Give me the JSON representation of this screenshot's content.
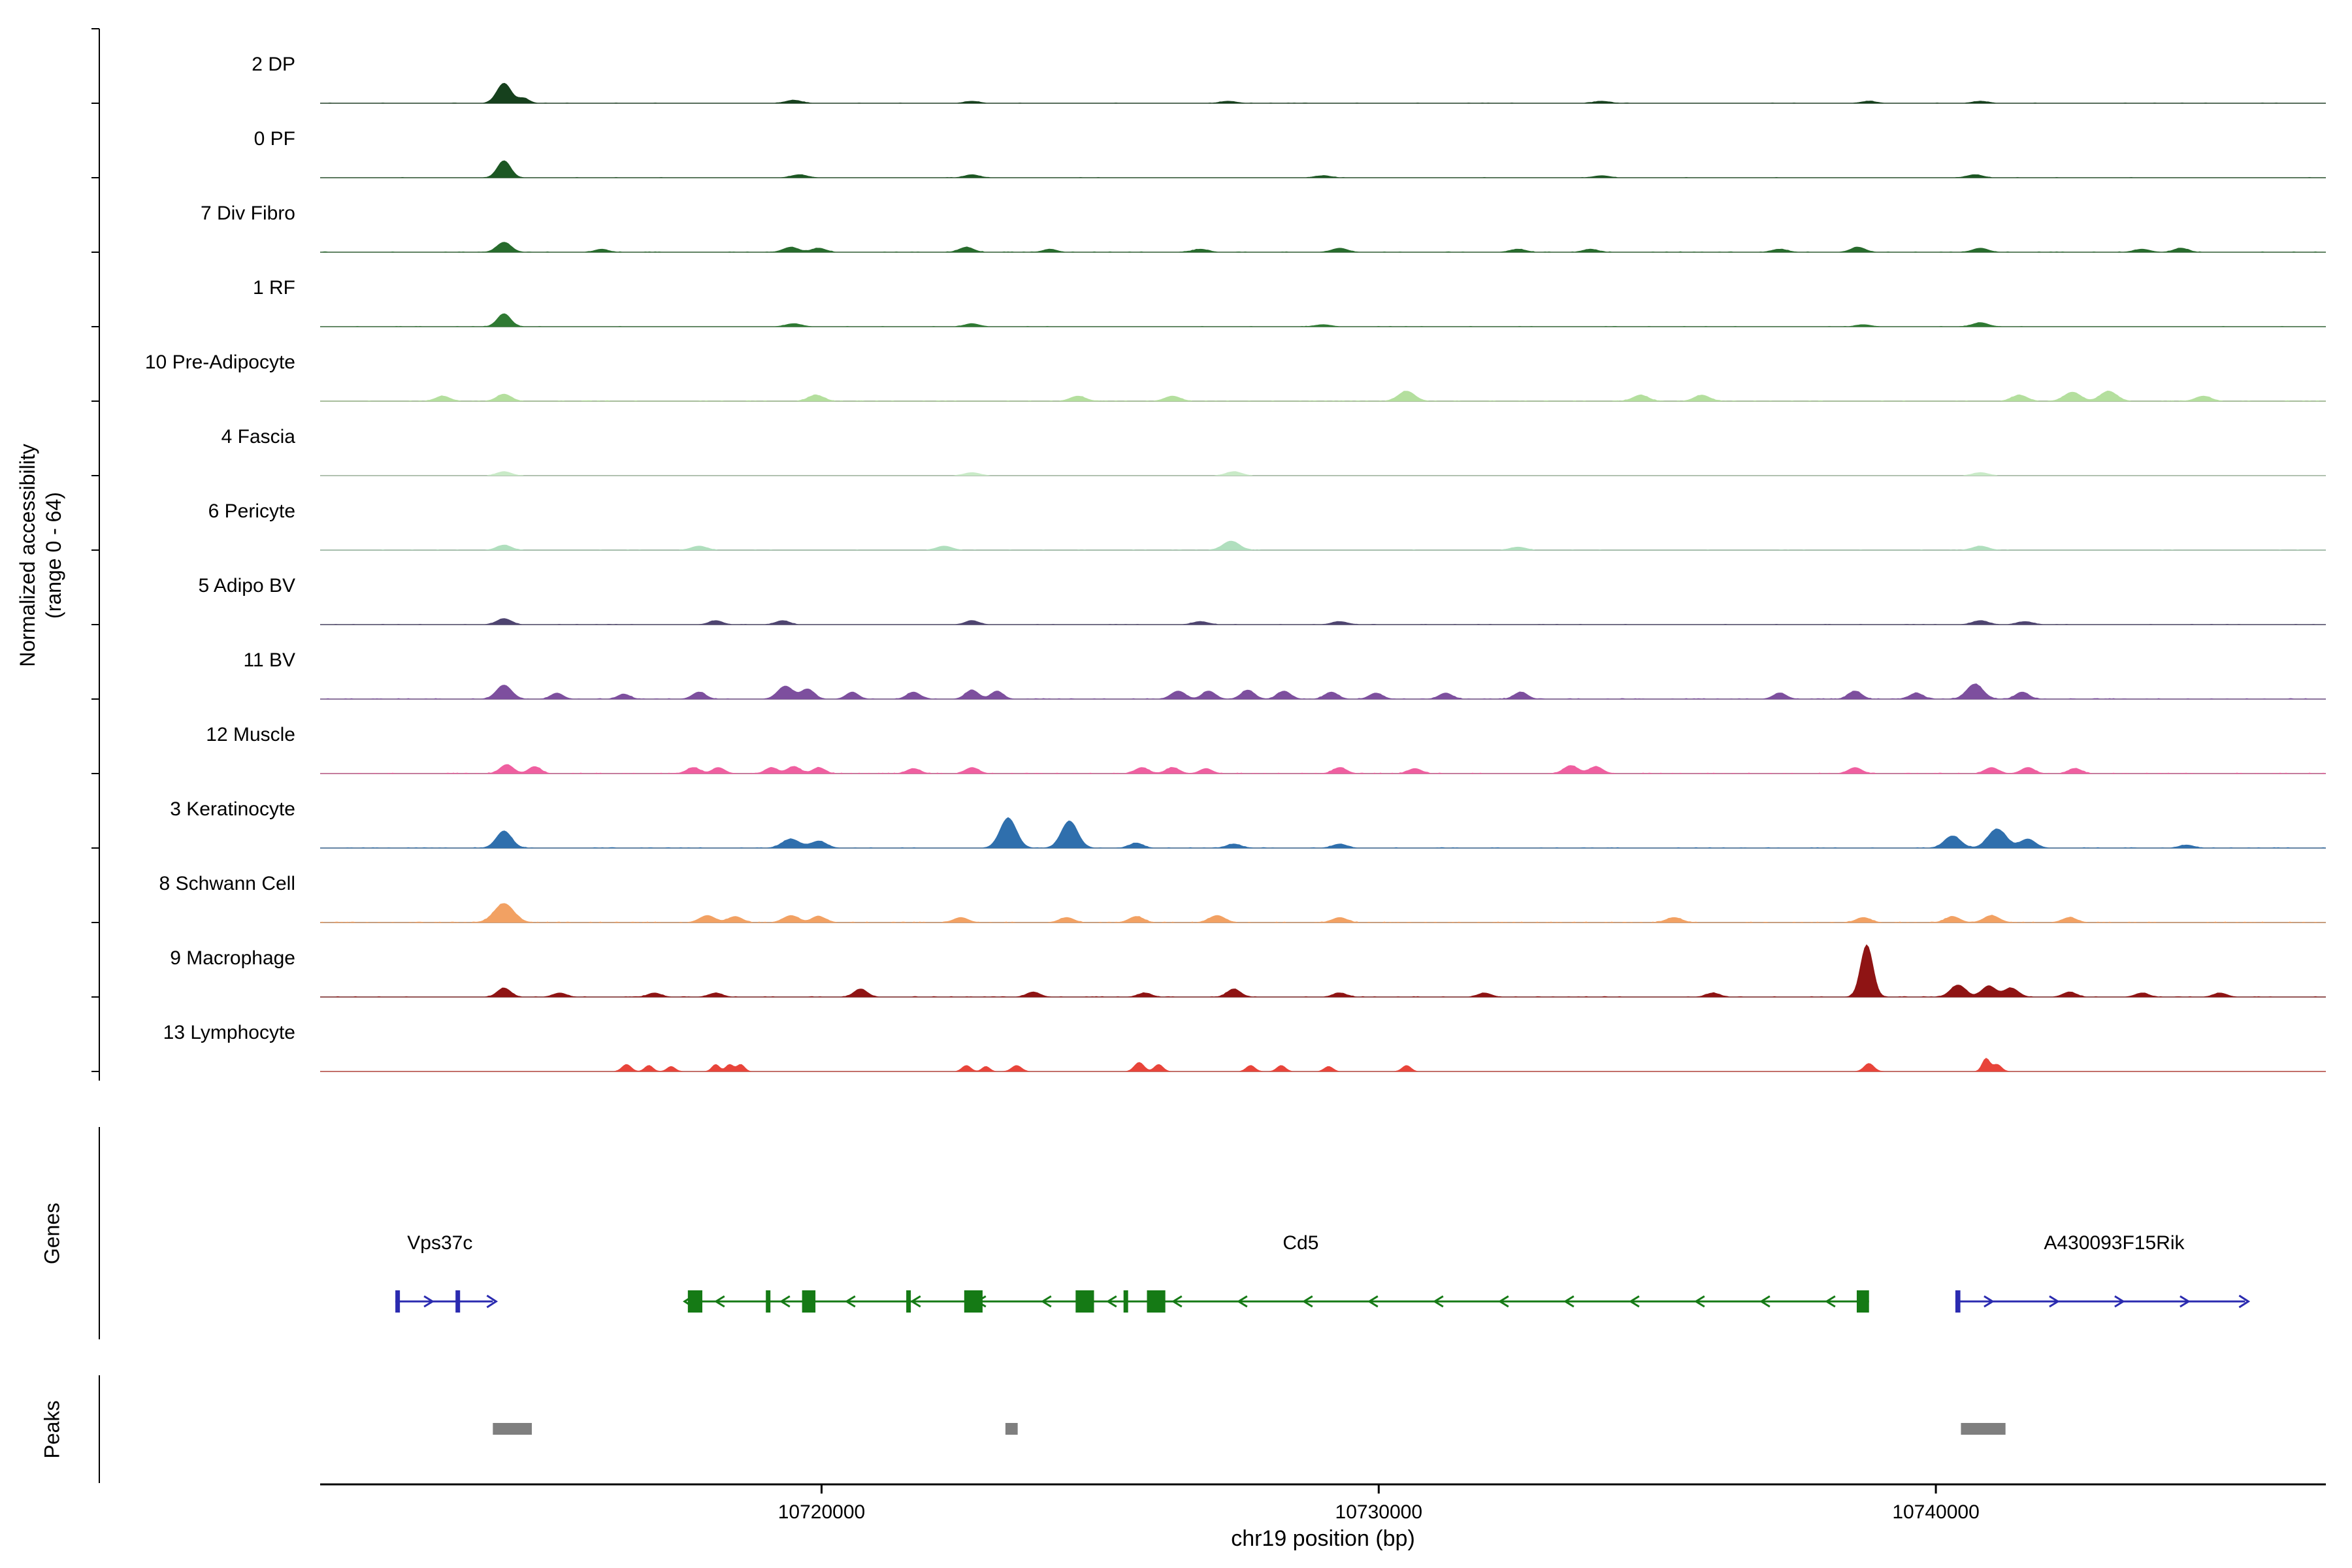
{
  "figure": {
    "y_axis_label_line1": "Normalized accessibility",
    "y_axis_label_line2": "(range 0 - 64)",
    "genes_section_label": "Genes",
    "peaks_section_label": "Peaks",
    "x_axis_title": "chr19 position (bp)"
  },
  "chart_data": {
    "type": "area",
    "title": "",
    "x_axis": {
      "label": "chr19 position (bp)",
      "range_bp": [
        10711000,
        10747000
      ],
      "ticks": [
        10720000,
        10730000,
        10740000
      ]
    },
    "y_axis": {
      "label": "Normalized accessibility (range 0 - 64)",
      "per_track_range": [
        0,
        64
      ]
    },
    "tracks": [
      {
        "name": "2 DP",
        "color": "#16401d",
        "noise": 0.5,
        "peaks": [
          [
            10714300,
            20,
            280
          ],
          [
            10714650,
            5,
            220
          ],
          [
            10719500,
            3,
            300
          ],
          [
            10722700,
            2,
            280
          ],
          [
            10727300,
            2,
            300
          ],
          [
            10734000,
            2,
            300
          ],
          [
            10738800,
            2,
            280
          ],
          [
            10740800,
            2,
            300
          ]
        ]
      },
      {
        "name": "0 PF",
        "color": "#1c5723",
        "noise": 0.45,
        "peaks": [
          [
            10714300,
            17,
            260
          ],
          [
            10719600,
            3,
            300
          ],
          [
            10722700,
            3,
            280
          ],
          [
            10729000,
            2,
            300
          ],
          [
            10734000,
            2,
            300
          ],
          [
            10740700,
            3,
            300
          ]
        ]
      },
      {
        "name": "7 Div Fibro",
        "color": "#276b2c",
        "noise": 0.7,
        "peaks": [
          [
            10714300,
            10,
            280
          ],
          [
            10716050,
            3,
            260
          ],
          [
            10719450,
            5,
            300
          ],
          [
            10719950,
            4,
            280
          ],
          [
            10722600,
            5,
            280
          ],
          [
            10724100,
            3,
            260
          ],
          [
            10726800,
            3,
            300
          ],
          [
            10729300,
            4,
            300
          ],
          [
            10732500,
            3,
            300
          ],
          [
            10733800,
            3,
            280
          ],
          [
            10737200,
            3,
            300
          ],
          [
            10738600,
            5,
            280
          ],
          [
            10740800,
            4,
            300
          ],
          [
            10743700,
            3,
            300
          ],
          [
            10744400,
            4,
            280
          ]
        ]
      },
      {
        "name": "1 RF",
        "color": "#2f7a33",
        "noise": 0.5,
        "peaks": [
          [
            10714300,
            13,
            260
          ],
          [
            10719500,
            3,
            300
          ],
          [
            10722700,
            3,
            280
          ],
          [
            10729000,
            2,
            300
          ],
          [
            10738700,
            2,
            280
          ],
          [
            10740800,
            4,
            300
          ]
        ]
      },
      {
        "name": "10 Pre-Adipocyte",
        "color": "#b4df9e",
        "noise": 0.8,
        "peaks": [
          [
            10713200,
            5,
            280
          ],
          [
            10714300,
            7,
            280
          ],
          [
            10719900,
            6,
            300
          ],
          [
            10724600,
            5,
            300
          ],
          [
            10726300,
            5,
            300
          ],
          [
            10730500,
            10,
            320
          ],
          [
            10734700,
            6,
            300
          ],
          [
            10735800,
            6,
            300
          ],
          [
            10741500,
            6,
            300
          ],
          [
            10742450,
            9,
            320
          ],
          [
            10743100,
            10,
            320
          ],
          [
            10744800,
            5,
            300
          ]
        ]
      },
      {
        "name": "4 Fascia",
        "color": "#c9eac7",
        "noise": 0.35,
        "peaks": [
          [
            10714300,
            4,
            280
          ],
          [
            10722700,
            3,
            300
          ],
          [
            10727400,
            4,
            300
          ],
          [
            10740800,
            3,
            300
          ]
        ]
      },
      {
        "name": "6 Pericyte",
        "color": "#b0dfbe",
        "noise": 0.5,
        "peaks": [
          [
            10714300,
            5,
            280
          ],
          [
            10717800,
            4,
            300
          ],
          [
            10722200,
            4,
            300
          ],
          [
            10727350,
            9,
            320
          ],
          [
            10732500,
            3,
            300
          ],
          [
            10740800,
            4,
            300
          ]
        ]
      },
      {
        "name": "5 Adipo BV",
        "color": "#4e4470",
        "noise": 0.55,
        "peaks": [
          [
            10714300,
            6,
            280
          ],
          [
            10718100,
            4,
            260
          ],
          [
            10719300,
            4,
            260
          ],
          [
            10722700,
            4,
            260
          ],
          [
            10726800,
            3,
            300
          ],
          [
            10729300,
            3,
            300
          ],
          [
            10740800,
            4,
            300
          ],
          [
            10741600,
            3,
            300
          ]
        ]
      },
      {
        "name": "11 BV",
        "color": "#7d4f9e",
        "noise": 1.0,
        "peaks": [
          [
            10714300,
            14,
            300
          ],
          [
            10715250,
            6,
            240
          ],
          [
            10716450,
            5,
            240
          ],
          [
            10717800,
            7,
            260
          ],
          [
            10719350,
            13,
            300
          ],
          [
            10719750,
            10,
            260
          ],
          [
            10720550,
            7,
            240
          ],
          [
            10721650,
            7,
            260
          ],
          [
            10722700,
            9,
            260
          ],
          [
            10723150,
            8,
            240
          ],
          [
            10726400,
            8,
            280
          ],
          [
            10726950,
            8,
            260
          ],
          [
            10727650,
            9,
            260
          ],
          [
            10728300,
            8,
            260
          ],
          [
            10729150,
            7,
            260
          ],
          [
            10729950,
            6,
            260
          ],
          [
            10731200,
            6,
            260
          ],
          [
            10732550,
            7,
            260
          ],
          [
            10737200,
            6,
            260
          ],
          [
            10738550,
            8,
            260
          ],
          [
            10739650,
            6,
            260
          ],
          [
            10740700,
            15,
            320
          ],
          [
            10741550,
            7,
            260
          ]
        ]
      },
      {
        "name": "12 Muscle",
        "color": "#ef5fa0",
        "noise": 0.95,
        "peaks": [
          [
            10714350,
            9,
            260
          ],
          [
            10714850,
            7,
            240
          ],
          [
            10717700,
            6,
            260
          ],
          [
            10718150,
            6,
            240
          ],
          [
            10719100,
            6,
            240
          ],
          [
            10719500,
            7,
            260
          ],
          [
            10719950,
            6,
            240
          ],
          [
            10721650,
            5,
            260
          ],
          [
            10722700,
            6,
            260
          ],
          [
            10725750,
            6,
            260
          ],
          [
            10726300,
            6,
            260
          ],
          [
            10726900,
            5,
            240
          ],
          [
            10729300,
            6,
            260
          ],
          [
            10730650,
            5,
            260
          ],
          [
            10733450,
            8,
            280
          ],
          [
            10733900,
            7,
            260
          ],
          [
            10738550,
            6,
            260
          ],
          [
            10741000,
            6,
            260
          ],
          [
            10741650,
            6,
            260
          ],
          [
            10742500,
            5,
            260
          ]
        ]
      },
      {
        "name": "3 Keratinocyte",
        "color": "#2f6fad",
        "noise": 0.8,
        "peaks": [
          [
            10714300,
            17,
            300
          ],
          [
            10719450,
            9,
            340
          ],
          [
            10719950,
            7,
            300
          ],
          [
            10723350,
            30,
            320
          ],
          [
            10724450,
            27,
            320
          ],
          [
            10725650,
            5,
            260
          ],
          [
            10727400,
            4,
            280
          ],
          [
            10729300,
            4,
            280
          ],
          [
            10740300,
            12,
            320
          ],
          [
            10741100,
            19,
            360
          ],
          [
            10741650,
            9,
            300
          ],
          [
            10744500,
            3,
            280
          ]
        ]
      },
      {
        "name": "8 Schwann Cell",
        "color": "#f2a163",
        "noise": 1.0,
        "peaks": [
          [
            10714300,
            19,
            380
          ],
          [
            10717950,
            7,
            300
          ],
          [
            10718450,
            6,
            280
          ],
          [
            10719450,
            7,
            300
          ],
          [
            10719950,
            6,
            280
          ],
          [
            10722500,
            5,
            280
          ],
          [
            10724400,
            5,
            280
          ],
          [
            10725650,
            6,
            280
          ],
          [
            10727100,
            7,
            300
          ],
          [
            10729300,
            5,
            280
          ],
          [
            10735300,
            5,
            300
          ],
          [
            10738700,
            5,
            280
          ],
          [
            10740300,
            6,
            280
          ],
          [
            10741000,
            7,
            300
          ],
          [
            10742400,
            5,
            280
          ]
        ]
      },
      {
        "name": "9 Macrophage",
        "color": "#8f1414",
        "noise": 0.8,
        "peaks": [
          [
            10714300,
            9,
            260
          ],
          [
            10715300,
            4,
            260
          ],
          [
            10717000,
            4,
            260
          ],
          [
            10718100,
            4,
            260
          ],
          [
            10720700,
            8,
            260
          ],
          [
            10723800,
            5,
            260
          ],
          [
            10725800,
            4,
            260
          ],
          [
            10727400,
            8,
            260
          ],
          [
            10729300,
            4,
            260
          ],
          [
            10731900,
            4,
            260
          ],
          [
            10736000,
            4,
            260
          ],
          [
            10738760,
            52,
            240
          ],
          [
            10740400,
            12,
            300
          ],
          [
            10740950,
            11,
            280
          ],
          [
            10741350,
            9,
            280
          ],
          [
            10742400,
            5,
            260
          ],
          [
            10743700,
            4,
            260
          ],
          [
            10745100,
            4,
            260
          ]
        ]
      },
      {
        "name": "13 Lymphocyte",
        "color": "#e8443a",
        "noise": 0.12,
        "peaks": [
          [
            10716500,
            7,
            180
          ],
          [
            10716900,
            6,
            160
          ],
          [
            10717300,
            5,
            160
          ],
          [
            10718100,
            7,
            150
          ],
          [
            10718350,
            7,
            150
          ],
          [
            10718550,
            7,
            150
          ],
          [
            10722600,
            6,
            170
          ],
          [
            10722950,
            5,
            150
          ],
          [
            10723500,
            6,
            190
          ],
          [
            10725700,
            9,
            190
          ],
          [
            10726050,
            7,
            170
          ],
          [
            10727700,
            6,
            170
          ],
          [
            10728250,
            6,
            170
          ],
          [
            10729100,
            5,
            170
          ],
          [
            10730500,
            6,
            170
          ],
          [
            10738800,
            8,
            190
          ],
          [
            10740900,
            13,
            150
          ],
          [
            10741100,
            7,
            170
          ]
        ]
      }
    ],
    "genes": [
      {
        "name": "Vps37c",
        "color": "#2b2bb0",
        "strand": "+",
        "start": 10712350,
        "end": 10714100,
        "label_bp": 10713150,
        "exons": [
          [
            10712350,
            10712430
          ],
          [
            10713430,
            10713500
          ]
        ]
      },
      {
        "name": "Cd5",
        "color": "#157a15",
        "strand": "-",
        "start": 10717600,
        "end": 10738800,
        "label_bp": 10728600,
        "exons": [
          [
            10717600,
            10717860
          ],
          [
            10719000,
            10719080
          ],
          [
            10719650,
            10719890
          ],
          [
            10721520,
            10721600
          ],
          [
            10722560,
            10722890
          ],
          [
            10724560,
            10724890
          ],
          [
            10725420,
            10725500
          ],
          [
            10725840,
            10726170
          ],
          [
            10738580,
            10738800
          ]
        ]
      },
      {
        "name": "A430093F15Rik",
        "color": "#2b2bb0",
        "strand": "+",
        "start": 10740350,
        "end": 10745550,
        "label_bp": 10743200,
        "exons": [
          [
            10740350,
            10740440
          ]
        ]
      }
    ],
    "peaks_track": [
      [
        10714100,
        10714800
      ],
      [
        10723300,
        10723520
      ],
      [
        10740450,
        10741250
      ]
    ]
  },
  "colors": {
    "baseline": "#9b9b9b",
    "axis": "#000000",
    "peak_box": "#7f7f7f"
  }
}
